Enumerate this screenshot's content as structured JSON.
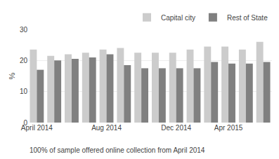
{
  "chart_data": {
    "type": "bar",
    "categories": [
      "April 2014",
      null,
      null,
      null,
      "Aug 2014",
      null,
      null,
      null,
      "Dec 2014",
      null,
      null,
      "Apr 2015",
      null,
      null
    ],
    "series": [
      {
        "name": "Capital city",
        "color": "#cccccc",
        "values": [
          23.5,
          21.5,
          22.0,
          22.5,
          23.5,
          24.0,
          22.5,
          22.5,
          22.5,
          23.5,
          24.5,
          24.5,
          23.5,
          26.0
        ]
      },
      {
        "name": "Rest of State",
        "color": "#808080",
        "values": [
          17.0,
          20.0,
          20.5,
          21.0,
          22.0,
          18.5,
          17.5,
          17.5,
          17.5,
          17.5,
          19.5,
          19.0,
          19.0,
          19.5
        ]
      }
    ],
    "ylabel": "%",
    "ylim": [
      0,
      30
    ],
    "yticks": [
      0,
      10,
      20,
      30
    ],
    "grid": true,
    "legend": "upper right",
    "caption": "100% of sample offered online collection from April 2014"
  }
}
